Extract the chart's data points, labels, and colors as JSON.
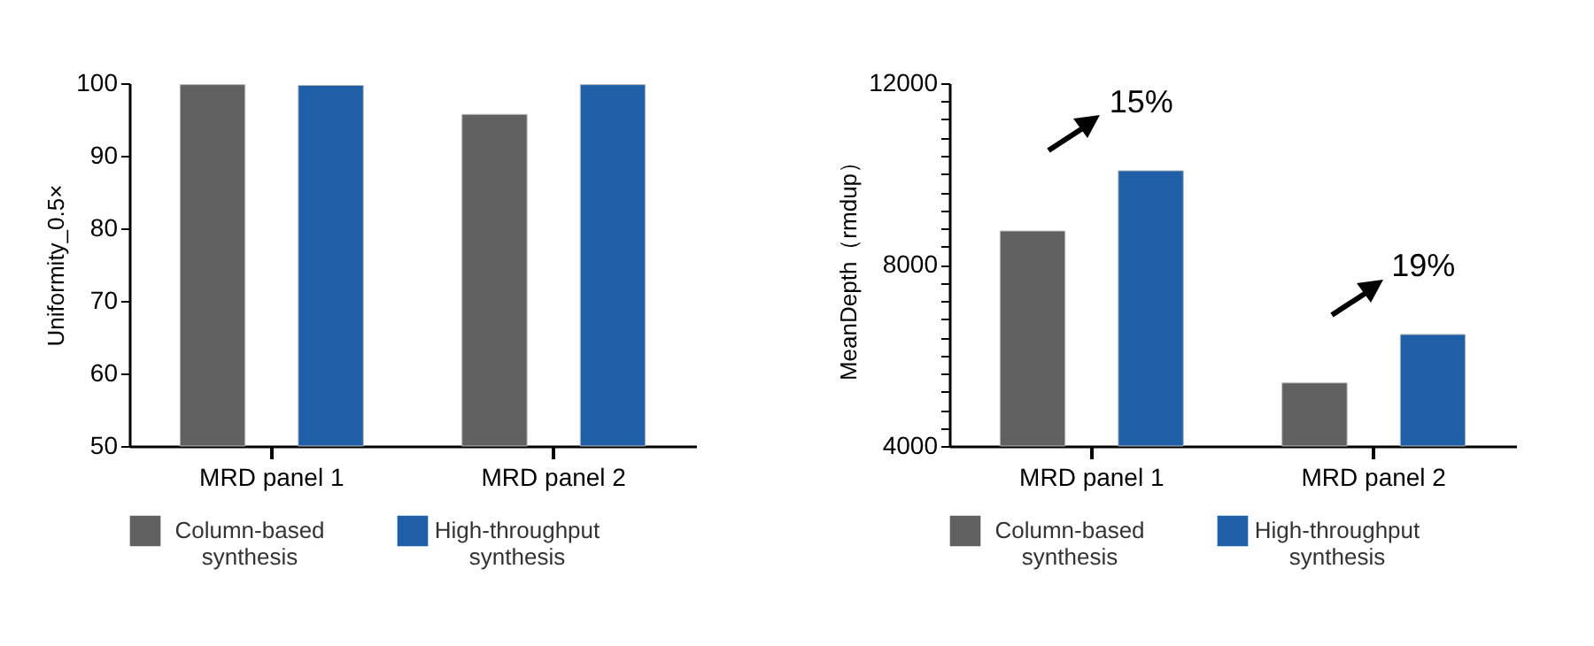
{
  "chart_data": [
    {
      "type": "bar",
      "categories": [
        "MRD panel 1",
        "MRD panel 2"
      ],
      "ylabel": "Uniformity_0.5×",
      "ylim": [
        50,
        100
      ],
      "yticks": [
        50,
        60,
        70,
        80,
        90,
        100
      ],
      "grid": false,
      "legend": "bottom",
      "series": [
        {
          "name": "Column-based synthesis",
          "color": "#616161",
          "values": [
            99.8,
            95.7
          ]
        },
        {
          "name": "High-throughput synthesis",
          "color": "#1f5fa8",
          "values": [
            99.7,
            99.8
          ]
        }
      ]
    },
    {
      "type": "bar",
      "categories": [
        "MRD panel 1",
        "MRD panel 2"
      ],
      "ylabel": "MeanDepth（rmdup）",
      "ylim": [
        4000,
        12000
      ],
      "yticks": [
        4000,
        {
          "value": 4400,
          "label": null
        },
        {
          "value": 4800,
          "label": null
        },
        {
          "value": 5200,
          "label": null
        },
        {
          "value": 5600,
          "label": null
        },
        {
          "value": 6000,
          "label": null
        },
        {
          "value": 6400,
          "label": null
        },
        {
          "value": 6800,
          "label": null
        },
        {
          "value": 7200,
          "label": null
        },
        {
          "value": 7600,
          "label": null
        },
        8000,
        {
          "value": 8400,
          "label": null
        },
        {
          "value": 8800,
          "label": null
        },
        {
          "value": 9200,
          "label": null
        },
        {
          "value": 9600,
          "label": null
        },
        {
          "value": 10000,
          "label": null
        },
        {
          "value": 10400,
          "label": null
        },
        {
          "value": 10800,
          "label": null
        },
        {
          "value": 11200,
          "label": null
        },
        {
          "value": 11600,
          "label": null
        },
        12000
      ],
      "grid": false,
      "legend": "bottom",
      "annotations": [
        "15%",
        "19%"
      ],
      "series": [
        {
          "name": "Column-based synthesis",
          "color": "#616161",
          "values": [
            8740,
            5390
          ]
        },
        {
          "name": "High-throughput synthesis",
          "color": "#1f5fa8",
          "values": [
            10070,
            6460
          ]
        }
      ]
    }
  ]
}
